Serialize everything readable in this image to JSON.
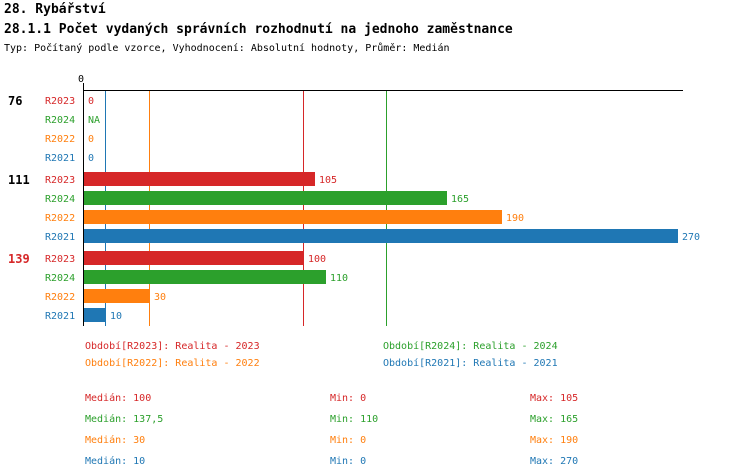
{
  "header": {
    "title": "28. Rybářství",
    "subtitle": "28.1.1 Počet vydaných správních rozhodnutí na jednoho zaměstnance",
    "meta": "Typ: Počítaný podle vzorce, Vyhodnocení: Absolutní hodnoty, Průměr: Medián"
  },
  "colors": {
    "R2023": "#d62728",
    "R2024": "#2ca02c",
    "R2022": "#ff7f0e",
    "R2021": "#1f77b4",
    "axis": "#000000"
  },
  "chart_data": {
    "type": "bar",
    "orientation": "horizontal",
    "xlim": [
      0,
      270
    ],
    "axis_zero_label": "0",
    "series_order": [
      "R2023",
      "R2024",
      "R2022",
      "R2021"
    ],
    "groups": [
      {
        "label": "76",
        "label_color": "#000000",
        "bars": [
          {
            "series": "R2023",
            "value": 0,
            "display": "0"
          },
          {
            "series": "R2024",
            "value": null,
            "display": "NA"
          },
          {
            "series": "R2022",
            "value": 0,
            "display": "0"
          },
          {
            "series": "R2021",
            "value": 0,
            "display": "0"
          }
        ]
      },
      {
        "label": "111",
        "label_color": "#000000",
        "bars": [
          {
            "series": "R2023",
            "value": 105,
            "display": "105"
          },
          {
            "series": "R2024",
            "value": 165,
            "display": "165"
          },
          {
            "series": "R2022",
            "value": 190,
            "display": "190"
          },
          {
            "series": "R2021",
            "value": 270,
            "display": "270"
          }
        ]
      },
      {
        "label": "139",
        "label_color": "#d62728",
        "bars": [
          {
            "series": "R2023",
            "value": 100,
            "display": "100"
          },
          {
            "series": "R2024",
            "value": 110,
            "display": "110"
          },
          {
            "series": "R2022",
            "value": 30,
            "display": "30"
          },
          {
            "series": "R2021",
            "value": 10,
            "display": "10"
          }
        ]
      }
    ],
    "median_lines": [
      {
        "series": "R2023",
        "value": 100
      },
      {
        "series": "R2024",
        "value": 137.5
      },
      {
        "series": "R2022",
        "value": 30
      },
      {
        "series": "R2021",
        "value": 10
      }
    ],
    "legend": [
      {
        "series": "R2023",
        "label": "Období[R2023]: Realita - 2023"
      },
      {
        "series": "R2024",
        "label": "Období[R2024]: Realita - 2024"
      },
      {
        "series": "R2022",
        "label": "Období[R2022]: Realita - 2022"
      },
      {
        "series": "R2021",
        "label": "Období[R2021]: Realita - 2021"
      }
    ],
    "stats": [
      {
        "series": "R2023",
        "median": "Medián: 100",
        "min": "Min: 0",
        "max": "Max: 105"
      },
      {
        "series": "R2024",
        "median": "Medián: 137,5",
        "min": "Min: 110",
        "max": "Max: 165"
      },
      {
        "series": "R2022",
        "median": "Medián: 30",
        "min": "Min: 0",
        "max": "Max: 190"
      },
      {
        "series": "R2021",
        "median": "Medián: 10",
        "min": "Min: 0",
        "max": "Max: 270"
      }
    ]
  }
}
